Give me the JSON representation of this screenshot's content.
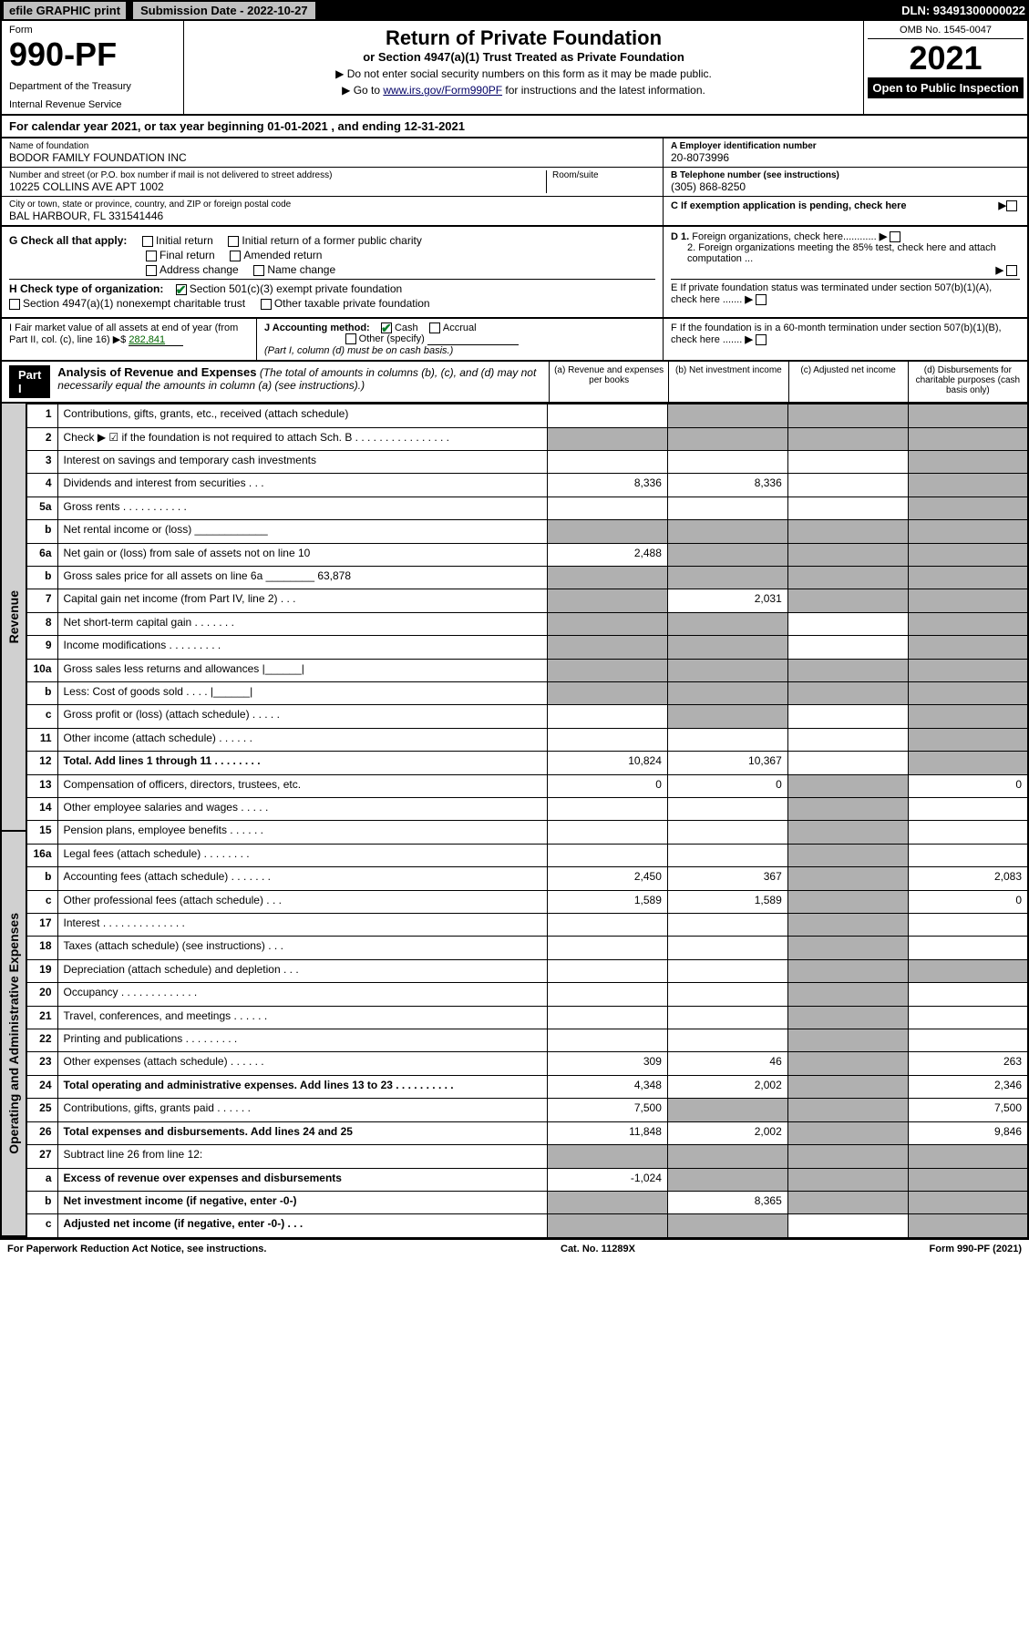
{
  "topbar": {
    "efile": "efile GRAPHIC print",
    "subdate_label": "Submission Date - 2022-10-27",
    "dln": "DLN: 93491300000022"
  },
  "header": {
    "form_label": "Form",
    "form_num": "990-PF",
    "dept": "Department of the Treasury",
    "irs": "Internal Revenue Service",
    "title": "Return of Private Foundation",
    "subtitle": "or Section 4947(a)(1) Trust Treated as Private Foundation",
    "instr1": "▶ Do not enter social security numbers on this form as it may be made public.",
    "instr2_pre": "▶ Go to ",
    "instr2_link": "www.irs.gov/Form990PF",
    "instr2_post": " for instructions and the latest information.",
    "omb": "OMB No. 1545-0047",
    "year": "2021",
    "inspect": "Open to Public Inspection"
  },
  "calyear": "For calendar year 2021, or tax year beginning 01-01-2021            , and ending 12-31-2021",
  "info": {
    "name_label": "Name of foundation",
    "name": "BODOR FAMILY FOUNDATION INC",
    "addr_label": "Number and street (or P.O. box number if mail is not delivered to street address)",
    "addr": "10225 COLLINS AVE APT 1002",
    "room_label": "Room/suite",
    "city_label": "City or town, state or province, country, and ZIP or foreign postal code",
    "city": "BAL HARBOUR, FL  331541446",
    "a_label": "A Employer identification number",
    "a_val": "20-8073996",
    "b_label": "B Telephone number (see instructions)",
    "b_val": "(305) 868-8250",
    "c_label": "C If exemption application is pending, check here"
  },
  "checks": {
    "g_label": "G Check all that apply:",
    "g_opts": [
      "Initial return",
      "Initial return of a former public charity",
      "Final return",
      "Amended return",
      "Address change",
      "Name change"
    ],
    "h_label": "H Check type of organization:",
    "h_501c3": "Section 501(c)(3) exempt private foundation",
    "h_4947": "Section 4947(a)(1) nonexempt charitable trust",
    "h_other": "Other taxable private foundation",
    "d1": "D 1. Foreign organizations, check here............",
    "d2": "2. Foreign organizations meeting the 85% test, check here and attach computation ...",
    "e": "E  If private foundation status was terminated under section 507(b)(1)(A), check here .......",
    "f": "F  If the foundation is in a 60-month termination under section 507(b)(1)(B), check here .......",
    "i_label": "I Fair market value of all assets at end of year (from Part II, col. (c), line 16) ▶$ ",
    "i_val": "282,841",
    "j_label": "J Accounting method:",
    "j_cash": "Cash",
    "j_accrual": "Accrual",
    "j_other": "Other (specify)",
    "j_note": "(Part I, column (d) must be on cash basis.)"
  },
  "part1": {
    "label": "Part I",
    "title": "Analysis of Revenue and Expenses",
    "note": " (The total of amounts in columns (b), (c), and (d) may not necessarily equal the amounts in column (a) (see instructions).)",
    "col_a": "(a)   Revenue and expenses per books",
    "col_b": "(b)   Net investment income",
    "col_c": "(c)   Adjusted net income",
    "col_d": "(d)   Disbursements for charitable purposes (cash basis only)"
  },
  "sidelabels": {
    "revenue": "Revenue",
    "opex": "Operating and Administrative Expenses"
  },
  "rows": [
    {
      "n": "1",
      "d": "Contributions, gifts, grants, etc., received (attach schedule)",
      "a": "",
      "b": "shaded",
      "c": "shaded",
      "e": "shaded"
    },
    {
      "n": "2",
      "d": "Check ▶ ☑ if the foundation is not required to attach Sch. B      .   .   .   .   .   .   .   .   .   .   .   .   .   .   .   .",
      "a": "shaded",
      "b": "shaded",
      "c": "shaded",
      "e": "shaded"
    },
    {
      "n": "3",
      "d": "Interest on savings and temporary cash investments",
      "a": "",
      "b": "",
      "c": "",
      "e": "shaded"
    },
    {
      "n": "4",
      "d": "Dividends and interest from securities    .   .   .",
      "a": "8,336",
      "b": "8,336",
      "c": "",
      "e": "shaded"
    },
    {
      "n": "5a",
      "d": "Gross rents        .   .   .   .   .   .   .   .   .   .   .",
      "a": "",
      "b": "",
      "c": "",
      "e": "shaded"
    },
    {
      "n": "b",
      "d": "Net rental income or (loss)  ____________",
      "a": "shaded",
      "b": "shaded",
      "c": "shaded",
      "e": "shaded"
    },
    {
      "n": "6a",
      "d": "Net gain or (loss) from sale of assets not on line 10",
      "a": "2,488",
      "b": "shaded",
      "c": "shaded",
      "e": "shaded"
    },
    {
      "n": "b",
      "d": "Gross sales price for all assets on line 6a ________ 63,878",
      "a": "shaded",
      "b": "shaded",
      "c": "shaded",
      "e": "shaded"
    },
    {
      "n": "7",
      "d": "Capital gain net income (from Part IV, line 2)    .   .   .",
      "a": "shaded",
      "b": "2,031",
      "c": "shaded",
      "e": "shaded"
    },
    {
      "n": "8",
      "d": "Net short-term capital gain  .   .   .   .   .   .   .",
      "a": "shaded",
      "b": "shaded",
      "c": "",
      "e": "shaded"
    },
    {
      "n": "9",
      "d": "Income modifications .   .   .   .   .   .   .   .   .",
      "a": "shaded",
      "b": "shaded",
      "c": "",
      "e": "shaded"
    },
    {
      "n": "10a",
      "d": "Gross sales less returns and allowances  |______|",
      "a": "shaded",
      "b": "shaded",
      "c": "shaded",
      "e": "shaded"
    },
    {
      "n": "b",
      "d": "Less: Cost of goods sold    .   .   .   .  |______|",
      "a": "shaded",
      "b": "shaded",
      "c": "shaded",
      "e": "shaded"
    },
    {
      "n": "c",
      "d": "Gross profit or (loss) (attach schedule)    .   .   .   .   .",
      "a": "",
      "b": "shaded",
      "c": "",
      "e": "shaded"
    },
    {
      "n": "11",
      "d": "Other income (attach schedule)    .   .   .   .   .   .",
      "a": "",
      "b": "",
      "c": "",
      "e": "shaded"
    },
    {
      "n": "12",
      "d": "Total. Add lines 1 through 11   .   .   .   .   .   .   .   .",
      "bold": true,
      "a": "10,824",
      "b": "10,367",
      "c": "",
      "e": "shaded"
    },
    {
      "n": "13",
      "d": "Compensation of officers, directors, trustees, etc.",
      "a": "0",
      "b": "0",
      "c": "shaded",
      "e": "0"
    },
    {
      "n": "14",
      "d": "Other employee salaries and wages    .   .   .   .   .",
      "a": "",
      "b": "",
      "c": "shaded",
      "e": ""
    },
    {
      "n": "15",
      "d": "Pension plans, employee benefits  .   .   .   .   .   .",
      "a": "",
      "b": "",
      "c": "shaded",
      "e": ""
    },
    {
      "n": "16a",
      "d": "Legal fees (attach schedule) .   .   .   .   .   .   .   .",
      "a": "",
      "b": "",
      "c": "shaded",
      "e": ""
    },
    {
      "n": "b",
      "d": "Accounting fees (attach schedule) .   .   .   .   .   .   .",
      "a": "2,450",
      "b": "367",
      "c": "shaded",
      "e": "2,083"
    },
    {
      "n": "c",
      "d": "Other professional fees (attach schedule)    .   .   .",
      "a": "1,589",
      "b": "1,589",
      "c": "shaded",
      "e": "0"
    },
    {
      "n": "17",
      "d": "Interest .   .   .   .   .   .   .   .   .   .   .   .   .   .",
      "a": "",
      "b": "",
      "c": "shaded",
      "e": ""
    },
    {
      "n": "18",
      "d": "Taxes (attach schedule) (see instructions)    .   .   .",
      "a": "",
      "b": "",
      "c": "shaded",
      "e": ""
    },
    {
      "n": "19",
      "d": "Depreciation (attach schedule) and depletion    .   .   .",
      "a": "",
      "b": "",
      "c": "shaded",
      "e": "shaded"
    },
    {
      "n": "20",
      "d": "Occupancy .   .   .   .   .   .   .   .   .   .   .   .   .",
      "a": "",
      "b": "",
      "c": "shaded",
      "e": ""
    },
    {
      "n": "21",
      "d": "Travel, conferences, and meetings .   .   .   .   .   .",
      "a": "",
      "b": "",
      "c": "shaded",
      "e": ""
    },
    {
      "n": "22",
      "d": "Printing and publications .   .   .   .   .   .   .   .   .",
      "a": "",
      "b": "",
      "c": "shaded",
      "e": ""
    },
    {
      "n": "23",
      "d": "Other expenses (attach schedule) .   .   .   .   .   .",
      "a": "309",
      "b": "46",
      "c": "shaded",
      "e": "263"
    },
    {
      "n": "24",
      "d": "Total operating and administrative expenses. Add lines 13 to 23   .   .   .   .   .   .   .   .   .   .",
      "bold": true,
      "a": "4,348",
      "b": "2,002",
      "c": "shaded",
      "e": "2,346"
    },
    {
      "n": "25",
      "d": "Contributions, gifts, grants paid    .   .   .   .   .   .",
      "a": "7,500",
      "b": "shaded",
      "c": "shaded",
      "e": "7,500"
    },
    {
      "n": "26",
      "d": "Total expenses and disbursements. Add lines 24 and 25",
      "bold": true,
      "a": "11,848",
      "b": "2,002",
      "c": "shaded",
      "e": "9,846"
    },
    {
      "n": "27",
      "d": "Subtract line 26 from line 12:",
      "a": "shaded",
      "b": "shaded",
      "c": "shaded",
      "e": "shaded"
    },
    {
      "n": "a",
      "d": "Excess of revenue over expenses and disbursements",
      "bold": true,
      "a": "-1,024",
      "b": "shaded",
      "c": "shaded",
      "e": "shaded"
    },
    {
      "n": "b",
      "d": "Net investment income (if negative, enter -0-)",
      "bold": true,
      "a": "shaded",
      "b": "8,365",
      "c": "shaded",
      "e": "shaded"
    },
    {
      "n": "c",
      "d": "Adjusted net income (if negative, enter -0-)   .   .   .",
      "bold": true,
      "a": "shaded",
      "b": "shaded",
      "c": "",
      "e": "shaded"
    }
  ],
  "footer": {
    "left": "For Paperwork Reduction Act Notice, see instructions.",
    "mid": "Cat. No. 11289X",
    "right": "Form 990-PF (2021)"
  }
}
